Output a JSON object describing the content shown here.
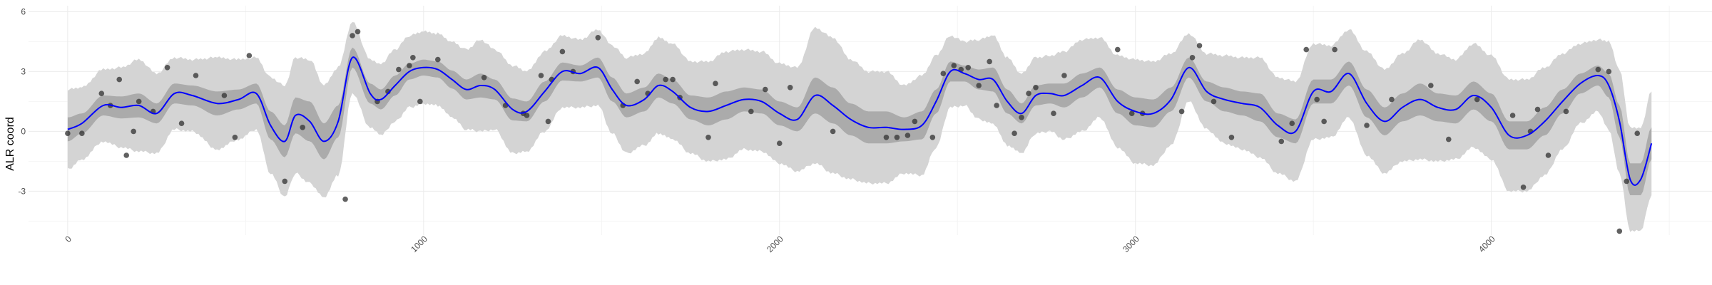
{
  "chart_data": {
    "type": "line",
    "xlabel": "",
    "ylabel": "ALR coord",
    "xlim": [
      -110,
      4620
    ],
    "ylim": [
      -5.2,
      6.3
    ],
    "x_ticks": [
      0,
      1000,
      2000,
      3000,
      4000
    ],
    "x_tick_labels": [
      "0",
      "1000",
      "2000",
      "3000",
      "4000"
    ],
    "y_ticks": [
      -3,
      0,
      3,
      6
    ],
    "y_tick_labels": [
      "-3",
      "0",
      "3",
      "6"
    ],
    "grid": true,
    "colors": {
      "outer_band": "#d4d4d4",
      "inner_band": "#ababab",
      "line": "#0000ff",
      "points": "#3a3a3a",
      "grid_major": "#ebebeb",
      "grid_minor": "#f4f4f4"
    },
    "series": [
      {
        "kind": "line",
        "color": "#0000ff",
        "x": [
          0,
          40,
          100,
          150,
          200,
          250,
          300,
          350,
          420,
          480,
          530,
          570,
          610,
          640,
          680,
          720,
          760,
          800,
          850,
          880,
          920,
          960,
          1000,
          1040,
          1080,
          1120,
          1160,
          1200,
          1250,
          1290,
          1340,
          1390,
          1440,
          1490,
          1530,
          1570,
          1620,
          1660,
          1700,
          1750,
          1800,
          1850,
          1900,
          1950,
          2000,
          2050,
          2100,
          2150,
          2200,
          2250,
          2300,
          2350,
          2400,
          2440,
          2480,
          2520,
          2560,
          2600,
          2640,
          2680,
          2720,
          2760,
          2800,
          2850,
          2900,
          2950,
          3000,
          3050,
          3100,
          3150,
          3200,
          3250,
          3300,
          3350,
          3400,
          3450,
          3500,
          3550,
          3600,
          3650,
          3700,
          3750,
          3800,
          3850,
          3900,
          3950,
          4000,
          4050,
          4100,
          4150,
          4200,
          4250,
          4300,
          4330,
          4360,
          4390,
          4420,
          4450
        ],
        "y": [
          0.1,
          0.4,
          1.3,
          1.2,
          1.3,
          0.9,
          1.9,
          1.8,
          1.4,
          1.6,
          1.9,
          0.3,
          -0.5,
          0.8,
          0.5,
          -0.5,
          0.5,
          3.7,
          1.9,
          1.6,
          2.3,
          3.0,
          3.2,
          3.1,
          2.6,
          2.1,
          2.3,
          2.1,
          1.1,
          1.0,
          2.0,
          3.0,
          2.9,
          3.2,
          2.1,
          1.3,
          1.6,
          2.3,
          2.0,
          1.2,
          1.0,
          1.3,
          1.6,
          1.5,
          0.9,
          0.6,
          1.8,
          1.3,
          0.6,
          0.2,
          0.2,
          0.1,
          0.3,
          1.5,
          3.0,
          2.9,
          2.6,
          2.6,
          1.5,
          0.9,
          1.8,
          1.9,
          1.8,
          2.3,
          2.7,
          1.5,
          1.0,
          0.9,
          1.6,
          3.2,
          2.0,
          1.6,
          1.4,
          1.2,
          0.3,
          0.0,
          2.0,
          2.0,
          2.9,
          1.4,
          0.5,
          1.2,
          1.6,
          1.2,
          1.1,
          1.8,
          1.2,
          -0.2,
          -0.2,
          0.5,
          1.5,
          2.4,
          2.8,
          2.3,
          0.5,
          -2.4,
          -2.4,
          -0.6
        ]
      },
      {
        "kind": "band-inner",
        "color": "#ababab",
        "half_width": [
          0.6,
          0.5,
          0.5,
          0.55,
          0.6,
          0.5,
          0.5,
          0.5,
          0.6,
          0.5,
          0.5,
          0.7,
          0.8,
          0.9,
          1.0,
          0.9,
          0.8,
          0.5,
          0.5,
          0.5,
          0.5,
          0.4,
          0.4,
          0.4,
          0.45,
          0.5,
          0.6,
          0.5,
          0.55,
          0.5,
          0.5,
          0.45,
          0.4,
          0.5,
          0.6,
          0.6,
          0.6,
          0.6,
          0.6,
          0.6,
          0.7,
          0.7,
          0.6,
          0.6,
          0.6,
          0.6,
          0.9,
          0.9,
          0.8,
          0.8,
          0.8,
          0.6,
          0.7,
          0.6,
          0.5,
          0.4,
          0.5,
          0.6,
          0.6,
          0.5,
          0.5,
          0.5,
          0.6,
          0.6,
          0.5,
          0.6,
          0.7,
          0.7,
          0.6,
          0.5,
          0.5,
          0.6,
          0.6,
          0.7,
          0.6,
          0.6,
          0.6,
          0.6,
          0.6,
          0.7,
          0.7,
          0.7,
          0.8,
          0.7,
          0.7,
          0.7,
          0.7,
          0.7,
          0.7,
          0.7,
          0.6,
          0.5,
          0.5,
          0.6,
          0.8,
          0.8,
          0.8,
          0.8
        ]
      },
      {
        "kind": "band-outer",
        "color": "#d4d4d4",
        "half_width": [
          2.0,
          1.8,
          1.8,
          2.0,
          2.3,
          2.0,
          1.8,
          1.8,
          2.3,
          2.0,
          1.8,
          2.4,
          2.8,
          2.9,
          3.1,
          2.8,
          2.7,
          1.8,
          1.7,
          1.8,
          1.8,
          1.8,
          1.8,
          1.8,
          1.9,
          2.0,
          2.3,
          2.0,
          2.2,
          2.0,
          2.0,
          1.8,
          1.7,
          1.9,
          2.2,
          2.4,
          2.3,
          2.4,
          2.4,
          2.3,
          2.5,
          2.7,
          2.5,
          2.5,
          2.5,
          2.6,
          3.4,
          3.4,
          3.0,
          2.8,
          2.8,
          2.2,
          2.5,
          2.3,
          1.8,
          1.6,
          2.0,
          2.2,
          2.2,
          2.0,
          1.9,
          1.9,
          2.2,
          2.3,
          2.0,
          2.3,
          2.6,
          2.6,
          2.3,
          1.7,
          1.9,
          2.2,
          2.3,
          2.5,
          2.4,
          2.5,
          2.4,
          2.3,
          2.2,
          2.6,
          2.6,
          2.7,
          3.0,
          2.7,
          2.5,
          2.6,
          2.6,
          2.8,
          2.8,
          2.7,
          2.4,
          2.0,
          1.8,
          2.2,
          2.6,
          2.6,
          2.6,
          2.6
        ]
      },
      {
        "kind": "points",
        "color": "#3a3a3a",
        "x": [
          0,
          40,
          95,
          120,
          145,
          165,
          185,
          200,
          240,
          280,
          320,
          360,
          440,
          470,
          510,
          610,
          660,
          780,
          800,
          815,
          870,
          900,
          930,
          960,
          970,
          990,
          1040,
          1170,
          1230,
          1280,
          1290,
          1330,
          1350,
          1360,
          1390,
          1420,
          1490,
          1560,
          1600,
          1630,
          1680,
          1700,
          1720,
          1800,
          1820,
          1920,
          1960,
          2000,
          2030,
          2150,
          2300,
          2330,
          2360,
          2380,
          2430,
          2460,
          2490,
          2510,
          2530,
          2560,
          2590,
          2610,
          2660,
          2680,
          2700,
          2720,
          2770,
          2800,
          2950,
          2990,
          3020,
          3130,
          3160,
          3180,
          3220,
          3270,
          3410,
          3440,
          3480,
          3510,
          3530,
          3560,
          3650,
          3720,
          3830,
          3880,
          3960,
          4060,
          4090,
          4110,
          4130,
          4160,
          4210,
          4300,
          4330,
          4360,
          4380,
          4410
        ],
        "y": [
          -0.1,
          -0.1,
          1.9,
          1.3,
          2.6,
          -1.2,
          0.0,
          1.5,
          1.0,
          3.2,
          0.4,
          2.8,
          1.8,
          -0.3,
          3.8,
          -2.5,
          0.2,
          -3.4,
          4.8,
          5.0,
          1.5,
          2.0,
          3.1,
          3.3,
          3.7,
          1.5,
          3.6,
          2.7,
          1.3,
          0.9,
          0.8,
          2.8,
          0.5,
          2.6,
          4.0,
          3.0,
          4.7,
          1.3,
          2.5,
          1.9,
          2.6,
          2.6,
          1.7,
          -0.3,
          2.4,
          1.0,
          2.1,
          -0.6,
          2.2,
          0.0,
          -0.3,
          -0.3,
          -0.2,
          0.5,
          -0.3,
          2.9,
          3.3,
          3.1,
          3.2,
          2.3,
          3.5,
          1.3,
          -0.1,
          0.7,
          1.9,
          2.2,
          0.9,
          2.8,
          4.1,
          0.9,
          0.9,
          1.0,
          3.7,
          4.3,
          1.5,
          -0.3,
          -0.5,
          0.4,
          4.1,
          1.6,
          0.5,
          4.1,
          0.3,
          1.6,
          2.3,
          -0.4,
          1.6,
          0.8,
          -2.8,
          0.0,
          1.1,
          -1.2,
          1.0,
          3.1,
          3.0,
          -5.0,
          -2.5,
          -0.1
        ]
      }
    ]
  }
}
